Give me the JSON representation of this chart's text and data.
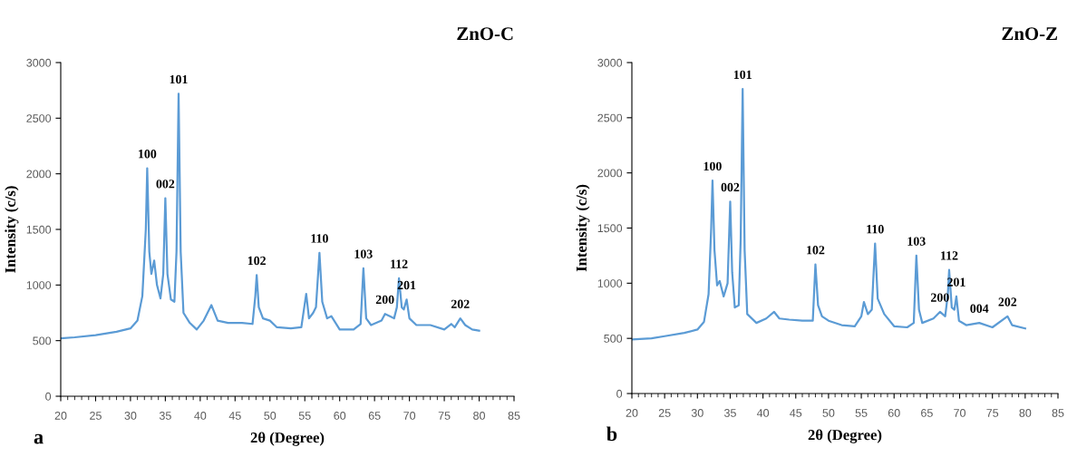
{
  "chart_data": [
    {
      "type": "line",
      "title": "ZnO-C",
      "xlabel": "2θ (Degree)",
      "ylabel": "Intensity (c/s)",
      "xlim": [
        20,
        85
      ],
      "xticks": [
        20,
        25,
        30,
        35,
        40,
        45,
        50,
        55,
        60,
        65,
        70,
        75,
        80,
        85
      ],
      "ylim": [
        0,
        3000
      ],
      "yticks": [
        0,
        500,
        1000,
        1500,
        2000,
        2500,
        3000
      ],
      "grid": false,
      "legend": false,
      "series": [
        {
          "color": "#5b9bd5",
          "x": [
            20,
            22,
            25,
            28,
            30,
            31,
            31.7,
            32.2,
            32.4,
            32.7,
            33,
            33.4,
            33.8,
            34.3,
            34.7,
            35,
            35.3,
            35.8,
            36.3,
            36.6,
            36.9,
            37.2,
            37.6,
            38.5,
            39.5,
            40.5,
            41.6,
            42.5,
            44,
            46,
            47.5,
            47.9,
            48.1,
            48.4,
            49,
            50,
            51,
            53,
            54.5,
            55.2,
            55.6,
            56.2,
            56.6,
            57.1,
            57.5,
            58.2,
            58.8,
            60,
            62,
            63,
            63.4,
            63.8,
            64.5,
            66,
            66.5,
            67.2,
            67.8,
            68.2,
            68.5,
            68.9,
            69.2,
            69.6,
            70,
            71,
            73,
            75,
            76,
            76.5,
            77.3,
            78,
            79,
            80
          ],
          "values": [
            520,
            530,
            550,
            580,
            610,
            680,
            900,
            1500,
            2050,
            1300,
            1100,
            1220,
            1000,
            880,
            1100,
            1780,
            1100,
            870,
            850,
            1300,
            2720,
            1300,
            750,
            660,
            600,
            680,
            820,
            680,
            660,
            660,
            650,
            900,
            1090,
            800,
            700,
            680,
            620,
            610,
            620,
            920,
            700,
            750,
            800,
            1290,
            850,
            700,
            720,
            600,
            600,
            650,
            1150,
            700,
            640,
            680,
            740,
            720,
            700,
            800,
            1060,
            800,
            780,
            870,
            700,
            640,
            640,
            600,
            650,
            620,
            700,
            640,
            600,
            590
          ]
        }
      ],
      "annotations": [
        {
          "text": "100",
          "x": 32.4,
          "y": 2050
        },
        {
          "text": "002",
          "x": 35,
          "y": 1780
        },
        {
          "text": "101",
          "x": 36.9,
          "y": 2720
        },
        {
          "text": "102",
          "x": 48.1,
          "y": 1090
        },
        {
          "text": "110",
          "x": 57.1,
          "y": 1290
        },
        {
          "text": "103",
          "x": 63.4,
          "y": 1150
        },
        {
          "text": "200",
          "x": 66.5,
          "y": 740
        },
        {
          "text": "112",
          "x": 68.5,
          "y": 1060
        },
        {
          "text": "201",
          "x": 69.6,
          "y": 870
        },
        {
          "text": "202",
          "x": 77.3,
          "y": 700
        },
        "a"
      ]
    },
    {
      "type": "line",
      "title": "ZnO-Z",
      "xlabel": "2θ (Degree)",
      "ylabel": "Intensity (c/s)",
      "xlim": [
        20,
        85
      ],
      "xticks": [
        20,
        25,
        30,
        35,
        40,
        45,
        50,
        55,
        60,
        65,
        70,
        75,
        80,
        85
      ],
      "ylim": [
        0,
        3000
      ],
      "yticks": [
        0,
        500,
        1000,
        1500,
        2000,
        2500,
        3000
      ],
      "grid": false,
      "legend": false,
      "series": [
        {
          "color": "#5b9bd5",
          "x": [
            20,
            23,
            25,
            28,
            30,
            31,
            31.7,
            32.1,
            32.3,
            32.6,
            33,
            33.4,
            34,
            34.6,
            35,
            35.3,
            35.7,
            36.3,
            36.6,
            36.9,
            37.2,
            37.6,
            39,
            40.5,
            41.7,
            42.5,
            44,
            46,
            47.6,
            48,
            48.4,
            49,
            50,
            52,
            54,
            55,
            55.4,
            56,
            56.6,
            57.1,
            57.5,
            58.5,
            60,
            62,
            63,
            63.4,
            63.8,
            64.3,
            66,
            67,
            67.8,
            68.2,
            68.4,
            68.8,
            69.2,
            69.5,
            69.9,
            71,
            73,
            75,
            77.3,
            78,
            80
          ],
          "values": [
            490,
            500,
            520,
            550,
            580,
            650,
            900,
            1500,
            1930,
            1300,
            980,
            1020,
            880,
            1000,
            1740,
            1100,
            780,
            800,
            1400,
            2760,
            1300,
            720,
            640,
            680,
            740,
            680,
            670,
            660,
            660,
            1170,
            800,
            700,
            660,
            620,
            610,
            700,
            830,
            720,
            760,
            1360,
            860,
            720,
            610,
            600,
            640,
            1250,
            760,
            640,
            680,
            740,
            700,
            900,
            1120,
            780,
            760,
            880,
            660,
            620,
            640,
            600,
            700,
            620,
            590
          ]
        }
      ],
      "annotations": [
        {
          "text": "100",
          "x": 32.3,
          "y": 1930
        },
        {
          "text": "002",
          "x": 35,
          "y": 1740
        },
        {
          "text": "101",
          "x": 36.9,
          "y": 2760
        },
        {
          "text": "102",
          "x": 48,
          "y": 1170
        },
        {
          "text": "110",
          "x": 57.1,
          "y": 1360
        },
        {
          "text": "103",
          "x": 63.4,
          "y": 1250
        },
        {
          "text": "200",
          "x": 67,
          "y": 740
        },
        {
          "text": "112",
          "x": 68.4,
          "y": 1120
        },
        {
          "text": "201",
          "x": 69.5,
          "y": 880
        },
        {
          "text": "004",
          "x": 73,
          "y": 640
        },
        {
          "text": "202",
          "x": 77.3,
          "y": 700
        },
        "b"
      ]
    }
  ]
}
